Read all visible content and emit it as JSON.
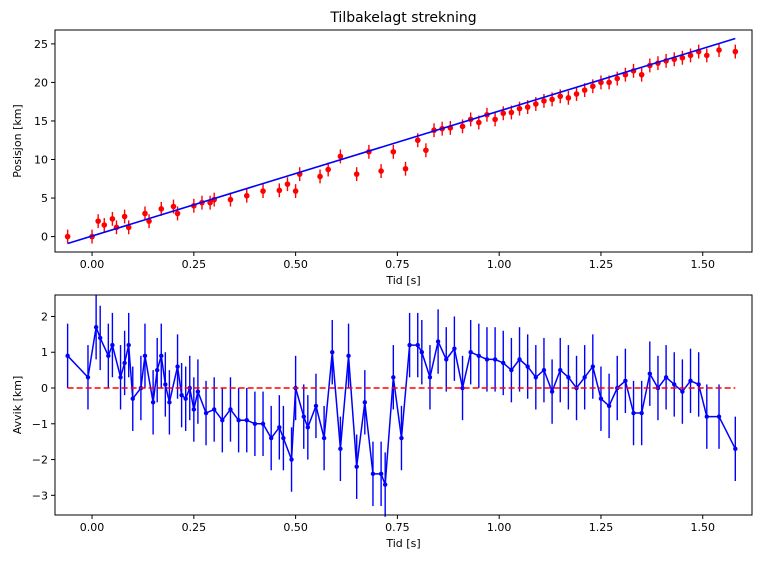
{
  "chart_data": [
    {
      "type": "scatter",
      "title": "Tilbakelagt strekning",
      "xlabel": "Tid [s]",
      "ylabel": "Posisjon [km]",
      "xlim": [
        -0.091,
        1.621
      ],
      "ylim": [
        -2.0,
        26.8
      ],
      "xticks": [
        0.0,
        0.25,
        0.5,
        0.75,
        1.0,
        1.25,
        1.5
      ],
      "xtick_labels": [
        "0.00",
        "0.25",
        "0.50",
        "0.75",
        "1.00",
        "1.25",
        "1.50"
      ],
      "yticks": [
        0,
        5,
        10,
        15,
        20,
        25
      ],
      "ytick_labels": [
        "0",
        "5",
        "10",
        "15",
        "20",
        "25"
      ],
      "series": [
        {
          "kind": "errorbar-points",
          "color": "#ff0000",
          "x": [
            -0.06,
            0.0,
            0.015,
            0.03,
            0.05,
            0.06,
            0.08,
            0.09,
            0.13,
            0.14,
            0.17,
            0.2,
            0.21,
            0.25,
            0.27,
            0.29,
            0.3,
            0.34,
            0.38,
            0.42,
            0.46,
            0.48,
            0.5,
            0.51,
            0.56,
            0.58,
            0.61,
            0.65,
            0.68,
            0.71,
            0.74,
            0.77,
            0.8,
            0.82,
            0.84,
            0.86,
            0.88,
            0.91,
            0.93,
            0.95,
            0.97,
            0.99,
            1.01,
            1.03,
            1.05,
            1.07,
            1.09,
            1.11,
            1.13,
            1.15,
            1.17,
            1.19,
            1.21,
            1.23,
            1.25,
            1.27,
            1.29,
            1.31,
            1.33,
            1.35,
            1.37,
            1.39,
            1.41,
            1.43,
            1.45,
            1.47,
            1.49,
            1.51,
            1.54,
            1.58
          ],
          "y": [
            0.0,
            0.0,
            2.0,
            1.5,
            2.3,
            1.2,
            2.6,
            1.2,
            3.0,
            2.0,
            3.6,
            3.9,
            3.0,
            4.0,
            4.4,
            4.4,
            4.8,
            4.8,
            5.3,
            5.9,
            6.0,
            6.8,
            5.9,
            8.1,
            7.8,
            8.7,
            10.4,
            8.1,
            11.0,
            8.5,
            11.0,
            8.8,
            12.5,
            11.2,
            13.8,
            14.0,
            14.1,
            14.3,
            15.2,
            14.8,
            15.8,
            15.2,
            16.0,
            16.1,
            16.6,
            16.8,
            17.2,
            17.6,
            17.8,
            18.2,
            18.0,
            18.5,
            19.0,
            19.5,
            20.0,
            20.0,
            20.5,
            21.0,
            21.5,
            21.0,
            22.2,
            22.5,
            22.8,
            23.0,
            23.2,
            23.5,
            24.0,
            23.5,
            24.2,
            24.0
          ],
          "yerr": 0.9
        },
        {
          "kind": "line",
          "color": "#0000ff",
          "x": [
            -0.06,
            1.58
          ],
          "y": [
            -0.9,
            25.7
          ]
        }
      ]
    },
    {
      "type": "line",
      "title": "",
      "xlabel": "Tid [s]",
      "ylabel": "Avvik [km]",
      "xlim": [
        -0.091,
        1.621
      ],
      "ylim": [
        -3.55,
        2.6
      ],
      "xticks": [
        0.0,
        0.25,
        0.5,
        0.75,
        1.0,
        1.25,
        1.5
      ],
      "xtick_labels": [
        "0.00",
        "0.25",
        "0.50",
        "0.75",
        "1.00",
        "1.25",
        "1.50"
      ],
      "yticks": [
        -3,
        -2,
        -1,
        0,
        1,
        2
      ],
      "ytick_labels": [
        "−3",
        "−2",
        "−1",
        "0",
        "1",
        "2"
      ],
      "series": [
        {
          "kind": "errorbar-line",
          "color": "#0000ff",
          "x": [
            -0.06,
            -0.01,
            0.01,
            0.02,
            0.04,
            0.05,
            0.07,
            0.08,
            0.09,
            0.1,
            0.12,
            0.13,
            0.15,
            0.16,
            0.17,
            0.18,
            0.19,
            0.21,
            0.22,
            0.23,
            0.24,
            0.25,
            0.26,
            0.28,
            0.3,
            0.32,
            0.34,
            0.36,
            0.38,
            0.4,
            0.42,
            0.44,
            0.46,
            0.47,
            0.49,
            0.5,
            0.52,
            0.53,
            0.55,
            0.57,
            0.59,
            0.61,
            0.63,
            0.65,
            0.67,
            0.69,
            0.71,
            0.72,
            0.74,
            0.76,
            0.78,
            0.8,
            0.81,
            0.83,
            0.85,
            0.87,
            0.89,
            0.91,
            0.93,
            0.95,
            0.97,
            0.99,
            1.01,
            1.03,
            1.05,
            1.07,
            1.09,
            1.11,
            1.13,
            1.15,
            1.17,
            1.19,
            1.21,
            1.23,
            1.25,
            1.27,
            1.29,
            1.31,
            1.33,
            1.35,
            1.37,
            1.39,
            1.41,
            1.43,
            1.45,
            1.47,
            1.49,
            1.51,
            1.54,
            1.58
          ],
          "y": [
            0.9,
            0.3,
            1.7,
            1.4,
            0.9,
            1.2,
            0.3,
            0.7,
            1.2,
            -0.3,
            0.0,
            0.9,
            -0.4,
            0.5,
            0.9,
            0.1,
            -0.4,
            0.6,
            -0.2,
            -0.3,
            0.0,
            -0.6,
            -0.1,
            -0.7,
            -0.6,
            -0.9,
            -0.6,
            -0.9,
            -0.9,
            -1.0,
            -1.0,
            -1.4,
            -1.1,
            -1.4,
            -2.0,
            0.0,
            -0.8,
            -1.1,
            -0.5,
            -1.4,
            1.0,
            -1.7,
            0.9,
            -2.2,
            -0.4,
            -2.4,
            -2.4,
            -2.7,
            0.3,
            -1.4,
            1.2,
            1.2,
            1.0,
            0.3,
            1.3,
            0.8,
            1.1,
            0.0,
            1.0,
            0.9,
            0.8,
            0.8,
            0.7,
            0.5,
            0.8,
            0.6,
            0.3,
            0.5,
            -0.1,
            0.5,
            0.3,
            0.0,
            0.3,
            0.6,
            -0.3,
            -0.5,
            0.0,
            0.2,
            -0.7,
            -0.7,
            0.4,
            0.0,
            0.3,
            0.1,
            -0.1,
            0.2,
            0.1,
            -0.8,
            -0.8,
            -1.7
          ],
          "yerr": 0.9
        },
        {
          "kind": "dashed-line",
          "color": "#ff0000",
          "x": [
            -0.06,
            1.58
          ],
          "y": [
            0.0,
            0.0
          ]
        }
      ]
    }
  ]
}
